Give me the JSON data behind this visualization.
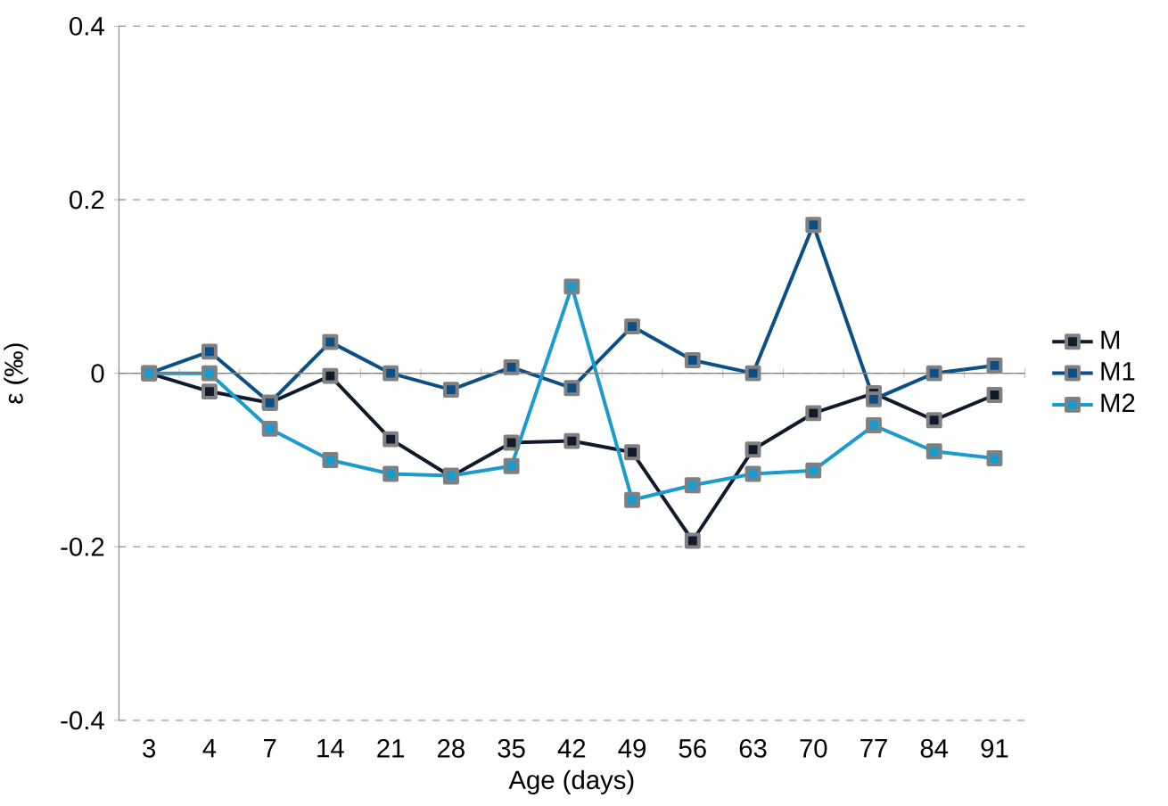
{
  "chart_data": {
    "type": "line",
    "xlabel": "Age (days)",
    "ylabel": "ε (‰)",
    "categories": [
      "3",
      "4",
      "7",
      "14",
      "21",
      "28",
      "35",
      "42",
      "49",
      "56",
      "63",
      "70",
      "77",
      "84",
      "91"
    ],
    "series": [
      {
        "name": "M",
        "color": "#0f1b2c",
        "values": [
          0,
          -0.021,
          -0.034,
          -0.003,
          -0.076,
          -0.119,
          -0.08,
          -0.078,
          -0.091,
          -0.193,
          -0.088,
          -0.046,
          -0.023,
          -0.054,
          -0.025
        ]
      },
      {
        "name": "M1",
        "color": "#0b4f86",
        "values": [
          0,
          0.025,
          -0.034,
          0.036,
          0,
          -0.019,
          0.007,
          -0.017,
          0.054,
          0.015,
          0,
          0.171,
          -0.03,
          0,
          0.009
        ]
      },
      {
        "name": "M2",
        "color": "#1a9bd0",
        "values": [
          0,
          0,
          -0.064,
          -0.1,
          -0.116,
          -0.118,
          -0.107,
          0.1,
          -0.146,
          -0.129,
          -0.116,
          -0.112,
          -0.06,
          -0.09,
          -0.098
        ]
      }
    ],
    "ylim": [
      -0.4,
      0.4
    ],
    "yticks": [
      {
        "value": -0.4,
        "label": "-0.4"
      },
      {
        "value": -0.2,
        "label": "-0.2"
      },
      {
        "value": 0,
        "label": "0"
      },
      {
        "value": 0.2,
        "label": "0.2"
      },
      {
        "value": 0.4,
        "label": "0.4"
      }
    ],
    "grid": "y",
    "legend": "right",
    "marker": "square",
    "line_style": "solid"
  }
}
